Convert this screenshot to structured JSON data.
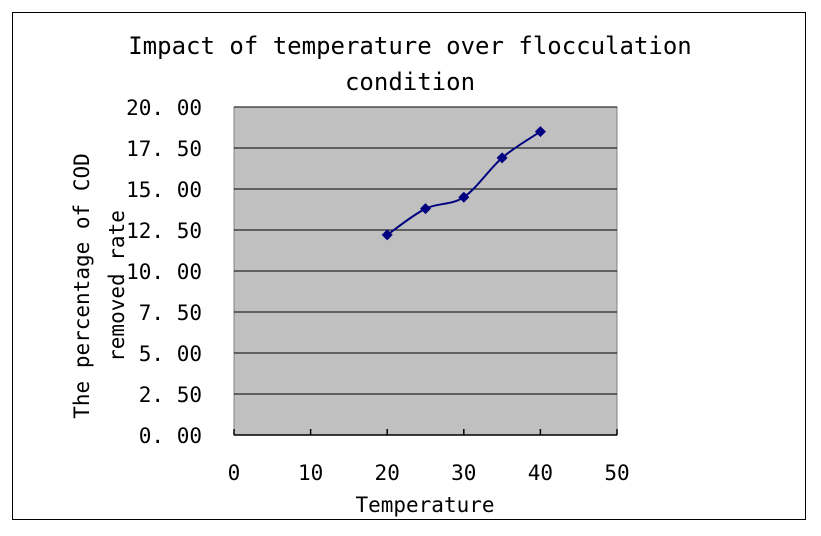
{
  "chart_data": {
    "type": "line",
    "title_lines": [
      "Impact of temperature over flocculation",
      "condition"
    ],
    "xlabel": "Temperature",
    "ylabel_lines": [
      "The percentage of COD",
      "removed rate"
    ],
    "x": [
      20,
      25,
      30,
      35,
      40
    ],
    "series": [
      {
        "name": "COD removed rate",
        "values": [
          12.2,
          13.8,
          14.5,
          16.9,
          18.5
        ]
      }
    ],
    "xlim": [
      0,
      50
    ],
    "ylim": [
      0,
      20
    ],
    "xticks": [
      0,
      10,
      20,
      30,
      40,
      50
    ],
    "xtick_labels": [
      "0",
      "10",
      "20",
      "30",
      "40",
      "50"
    ],
    "yticks": [
      0,
      2.5,
      5,
      7.5,
      10,
      12.5,
      15,
      17.5,
      20
    ],
    "ytick_labels": [
      "0. 00",
      "2. 50",
      "5. 00",
      "7. 50",
      "10. 00",
      "12. 50",
      "15. 00",
      "17. 50",
      "20. 00"
    ],
    "grid": true,
    "colors": {
      "plot_bg": "#c0c0c0",
      "line": "#000080",
      "marker": "#000080",
      "grid": "#000000"
    }
  }
}
